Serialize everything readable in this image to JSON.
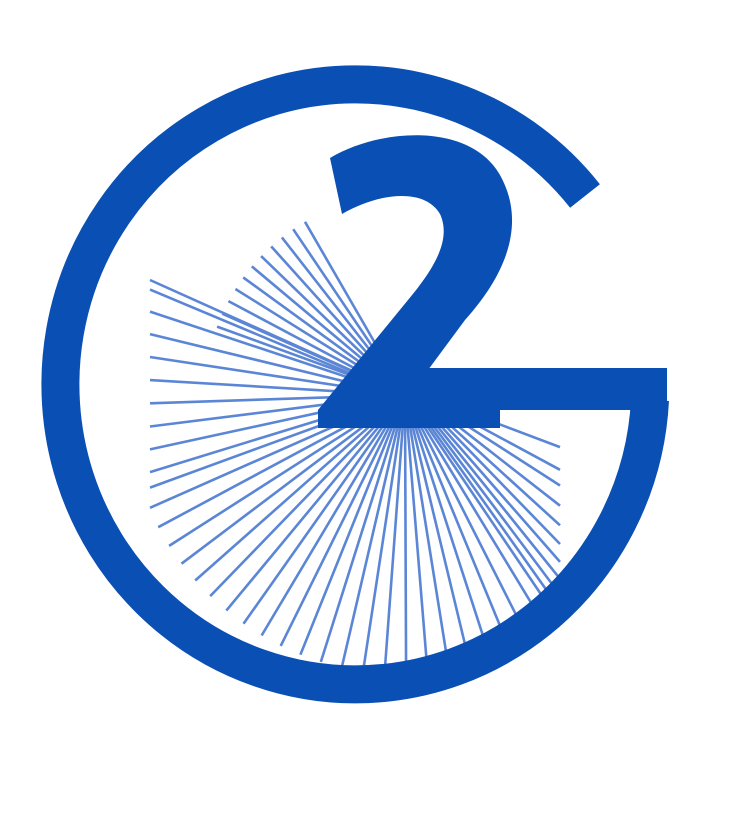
{
  "logo": {
    "glyph": "2",
    "colors": {
      "primary": "#0a4fb4",
      "rays": "#5b86d6",
      "background": "#ffffff"
    },
    "icons": [
      "g2-logo-icon",
      "sunburst-rays-icon"
    ]
  }
}
